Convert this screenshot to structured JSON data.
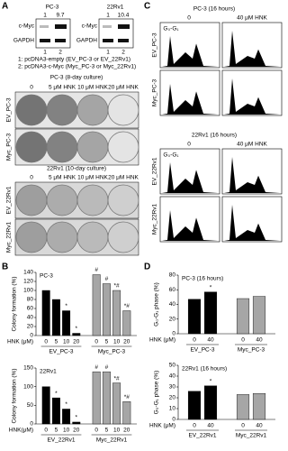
{
  "panels": {
    "A": {
      "label": "A",
      "blot": {
        "cell_lines": [
          "PC-3",
          "22Rv1"
        ],
        "quantification": [
          [
            1,
            9.7
          ],
          [
            1,
            10.4
          ]
        ],
        "rows": [
          "c-Myc",
          "GAPDH"
        ],
        "lanes": [
          "1",
          "2"
        ],
        "legend": [
          "1: pcDNA3-empty (EV_PC-3 or EV_22Rv1)",
          "2: pcDNA3-c-Myc (Myc_PC-3 or Myc_22Rv1)"
        ]
      },
      "colony": [
        {
          "title": "PC-3 (8-day culture)",
          "columns": [
            "0",
            "5 μM HNK",
            "10 μM HNK",
            "20 μM HNK"
          ],
          "rows": [
            "EV_PC-3",
            "Myc_PC-3"
          ]
        },
        {
          "title": "22Rv1 (10-day culture)",
          "columns": [
            "0",
            "5 μM HNK",
            "10 μM HNK",
            "20 μM HNK"
          ],
          "rows": [
            "EV_22Rv1",
            "Myc_22Rv1"
          ]
        }
      ]
    },
    "B": {
      "label": "B"
    },
    "C": {
      "label": "C",
      "blocks": [
        {
          "title": "PC-3 (16 hours)",
          "columns": [
            "0",
            "40 μM HNK"
          ],
          "rows": [
            "EV_PC-3",
            "Myc_PC-3"
          ],
          "peak_label": "G₀-G₁"
        },
        {
          "title": "22Rv1 (16 hours)",
          "columns": [
            "0",
            "40 μM HNK"
          ],
          "rows": [
            "EV_22Rv1",
            "Myc_22Rv1"
          ],
          "peak_label": "G₀-G₁"
        }
      ]
    },
    "D": {
      "label": "D"
    }
  },
  "chart_data": [
    {
      "type": "bar",
      "title": "PC-3",
      "y_label": "Colony formation (%)",
      "x_label": "HNK (μM)",
      "categories": [
        "0",
        "5",
        "10",
        "20"
      ],
      "ylim": [
        0,
        140
      ],
      "yticks": [
        0,
        20,
        40,
        60,
        80,
        100,
        120,
        140
      ],
      "series": [
        {
          "name": "EV_PC-3",
          "color": "#000000",
          "values": [
            100,
            80,
            55,
            5
          ],
          "annotations": [
            null,
            null,
            "*",
            "*"
          ]
        },
        {
          "name": "Myc_PC-3",
          "color": "#a6a6a6",
          "values": [
            135,
            115,
            100,
            55
          ],
          "annotations": [
            "#",
            "#",
            "*#",
            "*#"
          ]
        }
      ]
    },
    {
      "type": "bar",
      "title": "22Rv1",
      "y_label": "Colony formation (%)",
      "x_label": "HNK(μM)",
      "categories": [
        "0",
        "5",
        "10",
        "20"
      ],
      "ylim": [
        0,
        150
      ],
      "yticks": [
        0,
        50,
        100,
        150
      ],
      "series": [
        {
          "name": "EV_22Rv1",
          "color": "#000000",
          "values": [
            100,
            70,
            40,
            5
          ],
          "annotations": [
            null,
            "*",
            "*",
            "*"
          ]
        },
        {
          "name": "Myc_22Rv1",
          "color": "#a6a6a6",
          "values": [
            140,
            140,
            110,
            60
          ],
          "annotations": [
            "#",
            "#",
            "*#",
            "*#"
          ]
        }
      ]
    },
    {
      "type": "bar",
      "title": "PC-3 (16 hours)",
      "y_label": "G₀-G₁ phase (%)",
      "x_label": "HNK (μM)",
      "categories": [
        "0",
        "40"
      ],
      "ylim": [
        0,
        80
      ],
      "yticks": [
        0,
        20,
        40,
        60,
        80
      ],
      "series": [
        {
          "name": "EV_PC-3",
          "color": "#000000",
          "values": [
            47,
            57
          ],
          "annotations": [
            null,
            "*"
          ]
        },
        {
          "name": "Myc_PC-3",
          "color": "#a6a6a6",
          "values": [
            48,
            51
          ],
          "annotations": [
            null,
            null
          ]
        }
      ]
    },
    {
      "type": "bar",
      "title": "22Rv1 (16 hours)",
      "y_label": "G₀-G₁ phase (%)",
      "x_label": "HNK (μM)",
      "categories": [
        "0",
        "40"
      ],
      "ylim": [
        0,
        50
      ],
      "yticks": [
        0,
        10,
        20,
        30,
        40,
        50
      ],
      "series": [
        {
          "name": "EV_22Rv1",
          "color": "#000000",
          "values": [
            26,
            31
          ],
          "annotations": [
            null,
            "*"
          ]
        },
        {
          "name": "Myc_22Rv1",
          "color": "#a6a6a6",
          "values": [
            23,
            24
          ],
          "annotations": [
            null,
            null
          ]
        }
      ]
    }
  ]
}
